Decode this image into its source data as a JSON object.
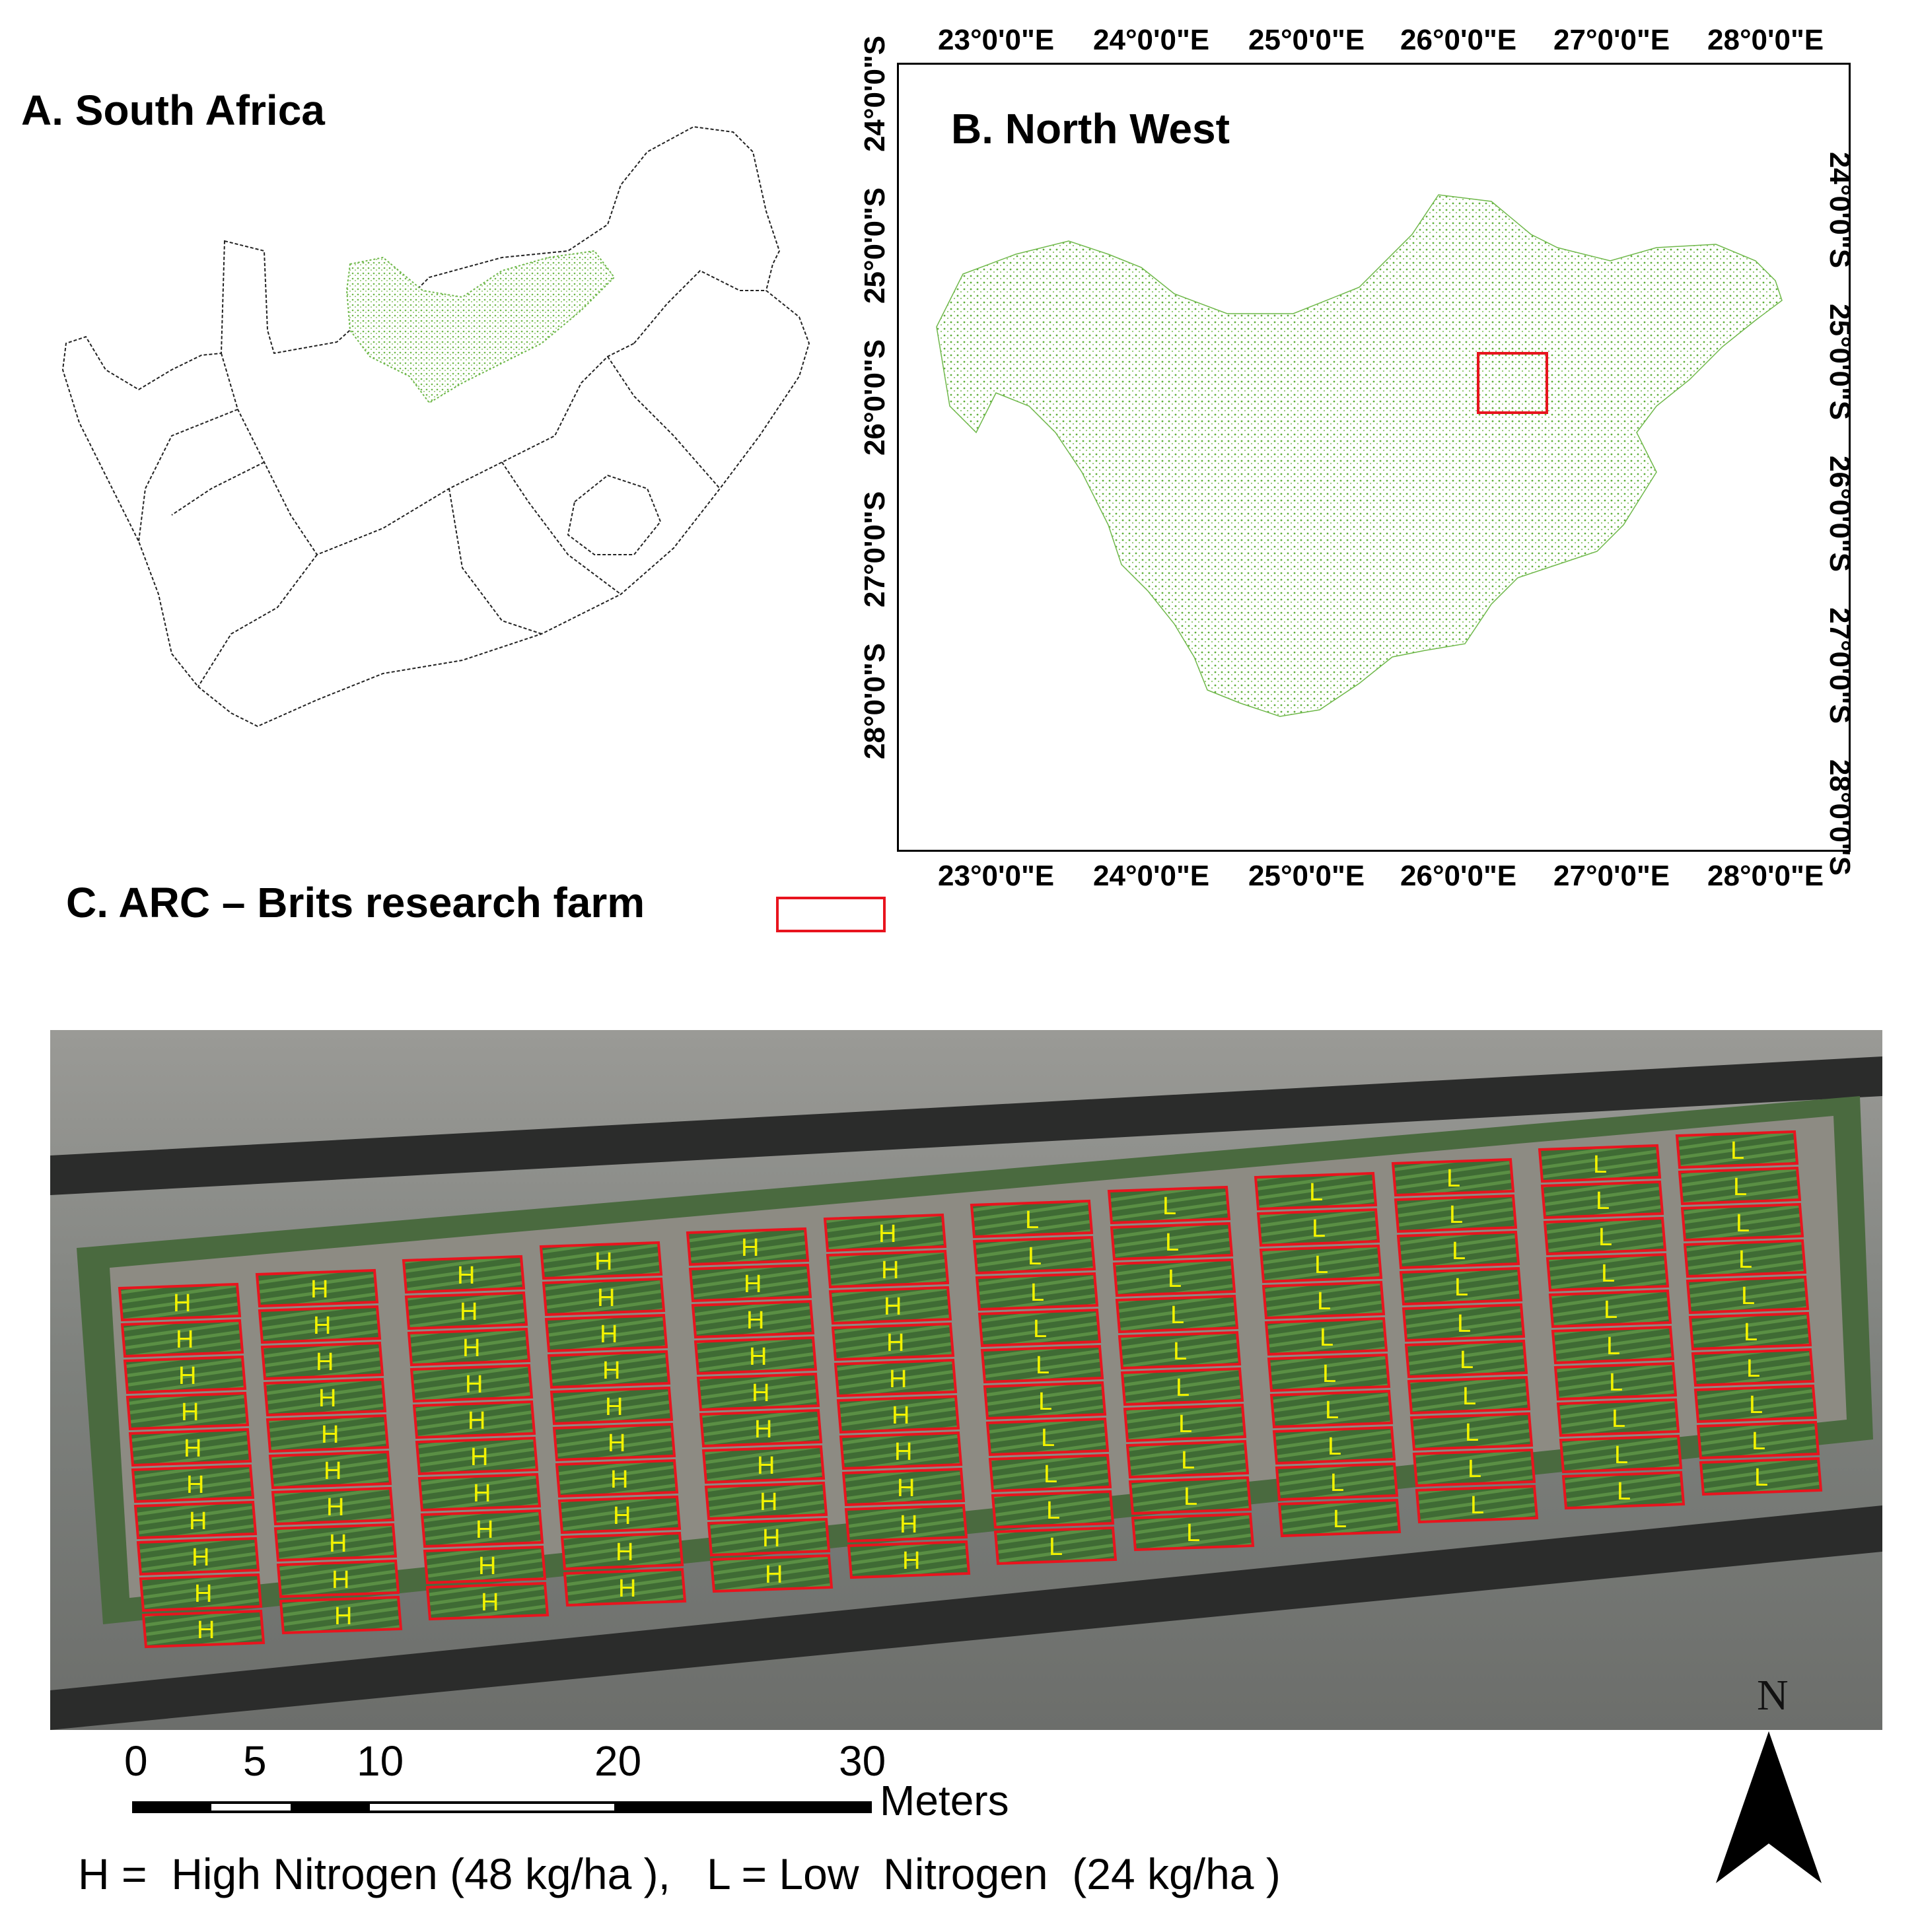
{
  "panel_a": {
    "title": "A. South Africa"
  },
  "panel_b": {
    "title": "B. North West",
    "lon_labels": [
      "23°0'0\"E",
      "24°0'0\"E",
      "25°0'0\"E",
      "26°0'0\"E",
      "27°0'0\"E",
      "28°0'0\"E"
    ],
    "lat_labels": [
      "24°0'0\"S",
      "25°0'0\"S",
      "26°0'0\"S",
      "27°0'0\"S",
      "28°0'0\"S"
    ]
  },
  "panel_c": {
    "title": "C. ARC – Brits research farm",
    "legend_box_color": "#e8141e",
    "north_label": "N",
    "scale": {
      "labels": [
        "0",
        "5",
        "10",
        "20",
        "30"
      ],
      "unit": "Meters"
    },
    "plots": {
      "high_label": "H",
      "low_label": "L",
      "outline_color": "#e8141e",
      "label_color": "#f2f200",
      "high_columns": 6,
      "low_columns": 6,
      "rows_per_column": 10,
      "low_rows_per_column": 10
    },
    "legend": "H =  High Nitrogen (48 kg/ha ),   L = Low  Nitrogen  (24 kg/ha )"
  },
  "colors": {
    "north_west_fill": "#5fae3a",
    "province_outline": "#000000",
    "study_area": "#e8141e"
  },
  "icons": {
    "north_arrow": "north-arrow-icon"
  }
}
